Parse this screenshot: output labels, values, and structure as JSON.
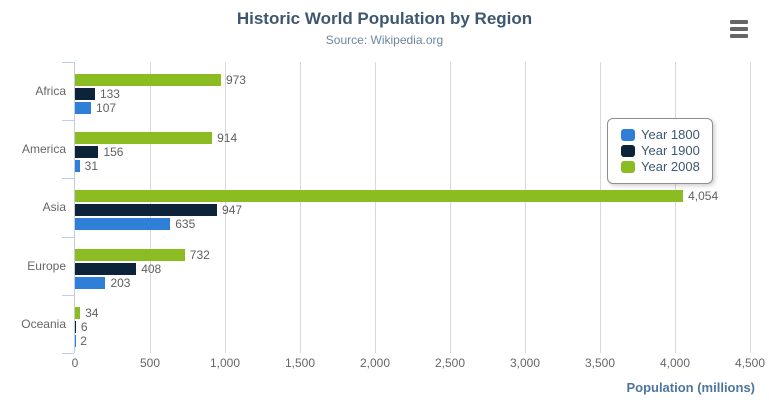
{
  "chart_data": {
    "type": "bar",
    "title": "Historic World Population by Region",
    "subtitle": "Source: Wikipedia.org",
    "categories": [
      "Africa",
      "America",
      "Asia",
      "Europe",
      "Oceania"
    ],
    "series": [
      {
        "name": "Year 1800",
        "color": "#2f7ed8",
        "values": [
          107,
          31,
          635,
          203,
          2
        ]
      },
      {
        "name": "Year 1900",
        "color": "#0d233a",
        "values": [
          133,
          156,
          947,
          408,
          6
        ]
      },
      {
        "name": "Year 2008",
        "color": "#8bbc21",
        "values": [
          973,
          914,
          4054,
          732,
          34
        ]
      }
    ],
    "series_display_order_top_to_bottom": [
      "Year 2008",
      "Year 1900",
      "Year 1800"
    ],
    "data_labels": [
      [
        "107",
        "31",
        "635",
        "203",
        "2"
      ],
      [
        "133",
        "156",
        "947",
        "408",
        "6"
      ],
      [
        "973",
        "914",
        "4,054",
        "732",
        "34"
      ]
    ],
    "xlabel": "Population (millions)",
    "xlim": [
      0,
      4500
    ],
    "xticks": {
      "values": [
        0,
        500,
        1000,
        1500,
        2000,
        2500,
        3000,
        3500,
        4000,
        4500
      ],
      "labels": [
        "0",
        "500",
        "1,000",
        "1,500",
        "2,000",
        "2,500",
        "3,000",
        "3,500",
        "4,000",
        "4,500"
      ]
    },
    "grid": true,
    "legend_position": "right",
    "colors": {
      "title": "#3E576F",
      "subtitle": "#6D869F",
      "axis_line": "#C0D0E0",
      "gridline": "#D8D8D8",
      "labels": "#666666",
      "data_labels": "#606060",
      "axis_title": "#4d759e"
    }
  },
  "menu": {
    "icon": "hamburger-icon"
  }
}
